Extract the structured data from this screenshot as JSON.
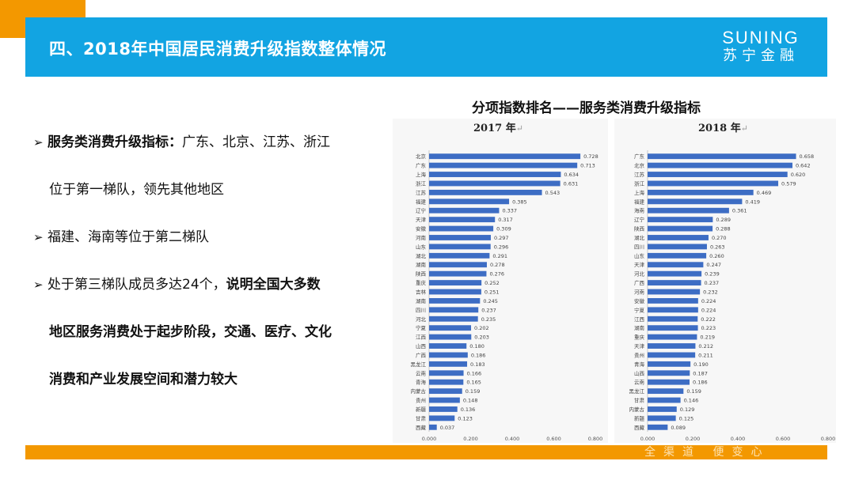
{
  "header": {
    "title": "四、2018年中国居民消费升级指数整体情况",
    "logo_en": "SUNING",
    "logo_cn": "苏宁金融"
  },
  "bullets": {
    "b1_bold": "服务类消费升级指标：",
    "b1_text1": "广东、北京、江苏、浙江",
    "b1_text2": "位于第一梯队，领先其他地区",
    "b2_text": "福建、海南等位于第二梯队",
    "b3_text": "处于第三梯队成员多达24个，",
    "b3_bold1": "说明全国大多数",
    "b3_bold2": "地区服务消费处于起步阶段，交通、医疗、文化",
    "b3_bold3": "消费和产业发展空间和潜力较大"
  },
  "chart_title": "分项指数排名——服务类消费升级指标",
  "chart_data": [
    {
      "type": "bar",
      "orientation": "horizontal",
      "title": "2017 年",
      "title_mark": "↵",
      "xlim": [
        0,
        0.8
      ],
      "xticks": [
        "0.000",
        "0.200",
        "0.400",
        "0.600",
        "0.800"
      ],
      "color": "#3d6dc4",
      "categories": [
        "北京",
        "广东",
        "上海",
        "浙江",
        "江苏",
        "福建",
        "辽宁",
        "天津",
        "安徽",
        "河南",
        "山东",
        "湖北",
        "湖南",
        "陕西",
        "重庆",
        "吉林",
        "湖南",
        "四川",
        "河北",
        "宁夏",
        "江西",
        "山西",
        "广西",
        "黑龙江",
        "云南",
        "青海",
        "内蒙古",
        "贵州",
        "新疆",
        "甘肃",
        "西藏"
      ],
      "values": [
        0.728,
        0.713,
        0.634,
        0.631,
        0.543,
        0.385,
        0.337,
        0.317,
        0.309,
        0.297,
        0.296,
        0.291,
        0.278,
        0.276,
        0.252,
        0.251,
        0.245,
        0.237,
        0.235,
        0.202,
        0.203,
        0.18,
        0.186,
        0.183,
        0.166,
        0.165,
        0.159,
        0.148,
        0.136,
        0.123,
        0.037
      ],
      "labels": [
        "0.728",
        "0.713",
        "0.634",
        "0.631",
        "0.543",
        "0.385",
        "0.337",
        "0.317",
        "0.309",
        "0.297",
        "0.296",
        "0.291",
        "0.278",
        "0.276",
        "0.252",
        "0.251",
        "0.245",
        "0.237",
        "0.235",
        "0.202",
        "0.203",
        "0.180",
        "0.186",
        "0.183",
        "0.166",
        "0.165",
        "0.159",
        "0.148",
        "0.136",
        "0.123",
        "0.037"
      ]
    },
    {
      "type": "bar",
      "orientation": "horizontal",
      "title": "2018 年",
      "title_mark": "↵",
      "xlim": [
        0,
        0.8
      ],
      "xticks": [
        "0.000",
        "0.200",
        "0.400",
        "0.600",
        "0.800"
      ],
      "color": "#3d6dc4",
      "categories": [
        "广东",
        "北京",
        "江苏",
        "浙江",
        "上海",
        "福建",
        "海南",
        "辽宁",
        "陕西",
        "湖北",
        "四川",
        "山东",
        "天津",
        "河北",
        "广西",
        "河南",
        "安徽",
        "宁夏",
        "江西",
        "湖南",
        "重庆",
        "天津",
        "贵州",
        "青海",
        "山西",
        "云南",
        "黑龙江",
        "甘肃",
        "内蒙古",
        "新疆",
        "西藏"
      ],
      "values": [
        0.658,
        0.642,
        0.62,
        0.579,
        0.469,
        0.419,
        0.361,
        0.289,
        0.288,
        0.27,
        0.263,
        0.26,
        0.247,
        0.239,
        0.237,
        0.232,
        0.224,
        0.224,
        0.222,
        0.223,
        0.219,
        0.212,
        0.211,
        0.19,
        0.187,
        0.186,
        0.159,
        0.146,
        0.129,
        0.125,
        0.089
      ],
      "labels": [
        "0.658",
        "0.642",
        "0.620",
        "0.579",
        "0.469",
        "0.419",
        "0.361",
        "0.289",
        "0.288",
        "0.270",
        "0.263",
        "0.260",
        "0.247",
        "0.239",
        "0.237",
        "0.232",
        "0.224",
        "0.224",
        "0.222",
        "0.223",
        "0.219",
        "0.212",
        "0.211",
        "0.190",
        "0.187",
        "0.186",
        "0.159",
        "0.146",
        "0.129",
        "0.125",
        "0.089"
      ]
    }
  ],
  "footer": {
    "slogan": "全渠道 便变心"
  }
}
